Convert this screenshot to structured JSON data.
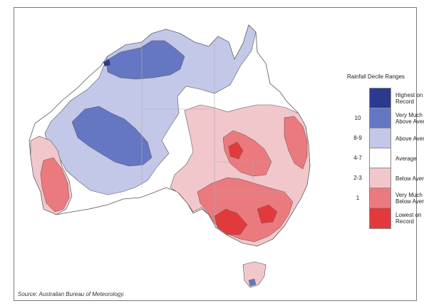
{
  "map": {
    "source": "Source: Australian Bureau of Meteorology.",
    "legend": {
      "title": "Rainfall Decile Ranges",
      "items": [
        {
          "range": "",
          "label": "Highest on Record",
          "color": "#2b3a8f"
        },
        {
          "range": "10",
          "label": "Very Much Above Average",
          "color": "#6577c2"
        },
        {
          "range": "8-9",
          "label": "Above Average",
          "color": "#c3c8e9"
        },
        {
          "range": "4-7",
          "label": "Average",
          "color": "#ffffff"
        },
        {
          "range": "2-3",
          "label": "Below Average",
          "color": "#f2c7cc"
        },
        {
          "range": "1",
          "label": "Very Much Below Average",
          "color": "#ea7a7e"
        },
        {
          "range": "",
          "label": "Lowest on Record",
          "color": "#e23a3c"
        }
      ]
    }
  }
}
